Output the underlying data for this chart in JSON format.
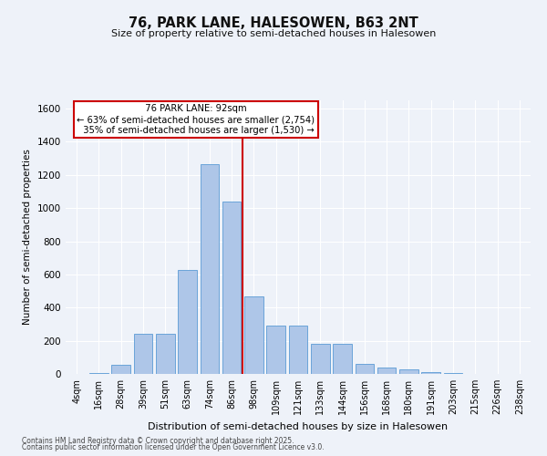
{
  "title": "76, PARK LANE, HALESOWEN, B63 2NT",
  "subtitle": "Size of property relative to semi-detached houses in Halesowen",
  "xlabel": "Distribution of semi-detached houses by size in Halesowen",
  "ylabel": "Number of semi-detached properties",
  "categories": [
    "4sqm",
    "16sqm",
    "28sqm",
    "39sqm",
    "51sqm",
    "63sqm",
    "74sqm",
    "86sqm",
    "98sqm",
    "109sqm",
    "121sqm",
    "133sqm",
    "144sqm",
    "156sqm",
    "168sqm",
    "180sqm",
    "191sqm",
    "203sqm",
    "215sqm",
    "226sqm",
    "238sqm"
  ],
  "values": [
    2,
    5,
    55,
    240,
    240,
    625,
    1265,
    1040,
    470,
    290,
    290,
    180,
    180,
    60,
    38,
    25,
    10,
    4,
    2,
    0,
    0
  ],
  "bar_color": "#aec6e8",
  "bar_edge_color": "#5b9bd5",
  "vline_x": 7.5,
  "highlight_label": "76 PARK LANE: 92sqm",
  "pct_smaller": 63,
  "pct_smaller_n": "2,754",
  "pct_larger": 35,
  "pct_larger_n": "1,530",
  "vline_color": "#cc0000",
  "annotation_box_color": "#cc0000",
  "ylim": [
    0,
    1650
  ],
  "yticks": [
    0,
    200,
    400,
    600,
    800,
    1000,
    1200,
    1400,
    1600
  ],
  "bg_color": "#eef2f9",
  "grid_color": "#ffffff",
  "footer_line1": "Contains HM Land Registry data © Crown copyright and database right 2025.",
  "footer_line2": "Contains public sector information licensed under the Open Government Licence v3.0."
}
